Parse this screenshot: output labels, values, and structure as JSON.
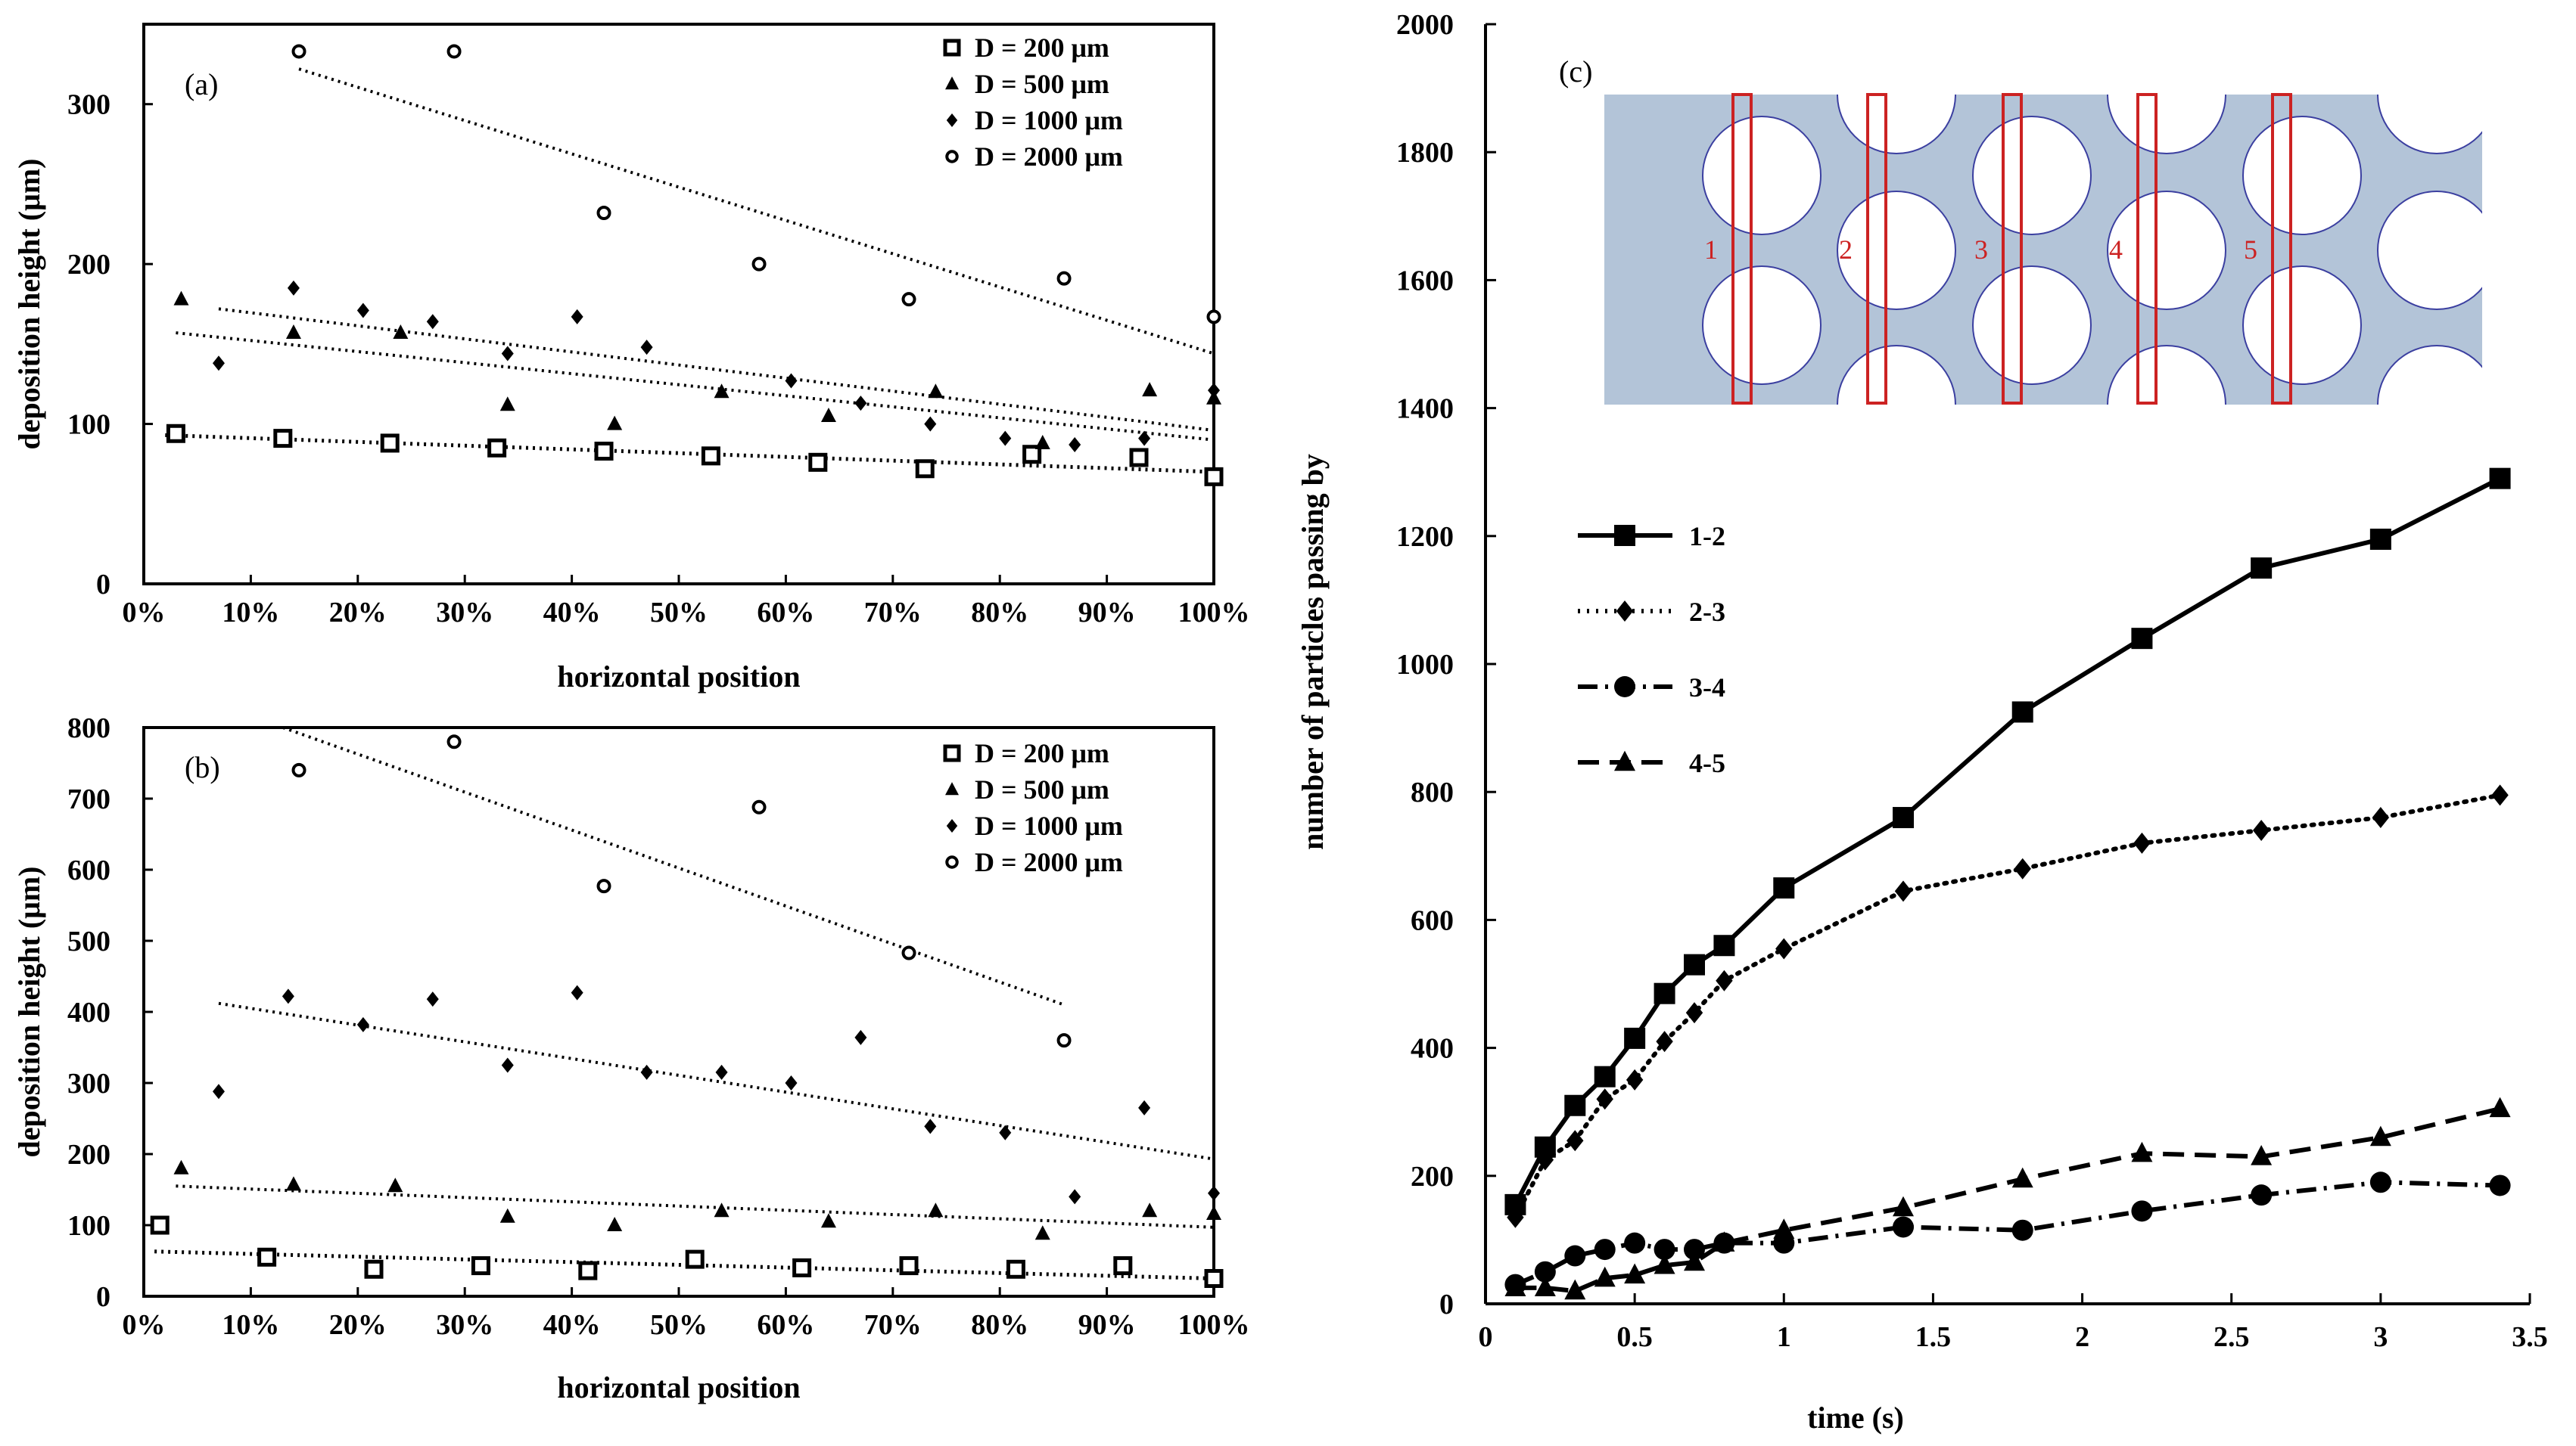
{
  "colors": {
    "axis": "#000000",
    "fluid": "#b3c4d8",
    "region_box": "#cc2222"
  },
  "chart_data": [
    {
      "id": "a",
      "type": "scatter",
      "panel_label": "(a)",
      "xlabel": "horizontal position",
      "ylabel": "deposition height (μm)",
      "xlim": [
        0,
        100
      ],
      "ylim": [
        0,
        350
      ],
      "xticks": [
        0,
        10,
        20,
        30,
        40,
        50,
        60,
        70,
        80,
        90,
        100
      ],
      "xtick_labels": [
        "0%",
        "10%",
        "20%",
        "30%",
        "40%",
        "50%",
        "60%",
        "70%",
        "80%",
        "90%",
        "100%"
      ],
      "yticks": [
        0,
        100,
        200,
        300
      ],
      "ytick_labels": [
        "0",
        "100",
        "200",
        "300"
      ],
      "legend_position": "top-right",
      "series": [
        {
          "name": "D = 200 μm",
          "marker": "square-open",
          "x": [
            3,
            13,
            23,
            33,
            43,
            53,
            63,
            73,
            83,
            93,
            100
          ],
          "y": [
            94,
            91,
            88,
            85,
            83,
            80,
            76,
            72,
            81,
            79,
            67
          ],
          "trend": [
            [
              2,
              93
            ],
            [
              100,
              70
            ]
          ]
        },
        {
          "name": "D = 500 μm",
          "marker": "triangle",
          "x": [
            3.5,
            14,
            24,
            34,
            44,
            54,
            64,
            74,
            84,
            94,
            100
          ],
          "y": [
            178,
            157,
            157,
            112,
            100,
            120,
            105,
            120,
            88,
            121,
            116
          ],
          "trend": [
            [
              3,
              157
            ],
            [
              100,
              90
            ]
          ]
        },
        {
          "name": "D = 1000 μm",
          "marker": "diamond",
          "x": [
            7,
            14,
            20.5,
            27,
            34,
            40.5,
            47,
            60.5,
            67,
            73.5,
            80.5,
            87,
            93.5,
            100
          ],
          "y": [
            138,
            185,
            171,
            164,
            144,
            167,
            148,
            127,
            113,
            100,
            91,
            87,
            91,
            121
          ],
          "trend": [
            [
              7,
              172
            ],
            [
              100,
              96
            ]
          ]
        },
        {
          "name": "D = 2000 μm",
          "marker": "circle-open",
          "x": [
            14.5,
            29,
            43,
            57.5,
            71.5,
            86,
            100
          ],
          "y": [
            333,
            333,
            232,
            200,
            178,
            191,
            167
          ],
          "trend": [
            [
              14.5,
              322
            ],
            [
              100,
              144
            ]
          ]
        }
      ]
    },
    {
      "id": "b",
      "type": "scatter",
      "panel_label": "(b)",
      "xlabel": "horizontal position",
      "ylabel": "deposition height (μm)",
      "xlim": [
        0,
        100
      ],
      "ylim": [
        0,
        800
      ],
      "xticks": [
        0,
        10,
        20,
        30,
        40,
        50,
        60,
        70,
        80,
        90,
        100
      ],
      "xtick_labels": [
        "0%",
        "10%",
        "20%",
        "30%",
        "40%",
        "50%",
        "60%",
        "70%",
        "80%",
        "90%",
        "100%"
      ],
      "yticks": [
        0,
        100,
        200,
        300,
        400,
        500,
        600,
        700,
        800
      ],
      "ytick_labels": [
        "0",
        "100",
        "200",
        "300",
        "400",
        "500",
        "600",
        "700",
        "800"
      ],
      "legend_position": "top-right",
      "series": [
        {
          "name": "D = 200 μm",
          "marker": "square-open",
          "x": [
            1.5,
            11.5,
            21.5,
            31.5,
            41.5,
            51.5,
            61.5,
            71.5,
            81.5,
            91.5,
            100
          ],
          "y": [
            100,
            55,
            38,
            43,
            36,
            52,
            40,
            43,
            38,
            43,
            25
          ],
          "trend": [
            [
              1,
              63
            ],
            [
              100,
              25
            ]
          ]
        },
        {
          "name": "D = 500 μm",
          "marker": "triangle",
          "x": [
            3.5,
            14,
            23.5,
            34,
            44,
            54,
            64,
            74,
            84,
            94,
            100
          ],
          "y": [
            180,
            157,
            155,
            112,
            100,
            120,
            105,
            120,
            88,
            120,
            116
          ],
          "trend": [
            [
              3,
              155
            ],
            [
              100,
              97
            ]
          ]
        },
        {
          "name": "D = 1000 μm",
          "marker": "diamond",
          "x": [
            7,
            13.5,
            20.5,
            27,
            34,
            40.5,
            47,
            54,
            60.5,
            67,
            73.5,
            80.5,
            87,
            93.5,
            100
          ],
          "y": [
            288,
            422,
            382,
            418,
            325,
            427,
            315,
            315,
            300,
            364,
            239,
            230,
            140,
            265,
            145
          ],
          "trend": [
            [
              7,
              412
            ],
            [
              100,
              193
            ]
          ]
        },
        {
          "name": "D = 2000 μm",
          "marker": "circle-open",
          "x": [
            14.5,
            29,
            43,
            57.5,
            71.5,
            86
          ],
          "y": [
            740,
            780,
            577,
            688,
            483,
            360
          ],
          "trend": [
            [
              13,
              800
            ],
            [
              86,
              410
            ]
          ]
        }
      ]
    },
    {
      "id": "c",
      "type": "line",
      "panel_label": "(c)",
      "xlabel": "time (s)",
      "ylabel": "number of particles passing by",
      "xlim": [
        0,
        3.5
      ],
      "ylim": [
        0,
        2000
      ],
      "xticks": [
        0,
        0.5,
        1,
        1.5,
        2,
        2.5,
        3,
        3.5
      ],
      "xtick_labels": [
        "0",
        "0.5",
        "1",
        "1.5",
        "2",
        "2.5",
        "3",
        "3.5"
      ],
      "yticks": [
        0,
        200,
        400,
        600,
        800,
        1000,
        1200,
        1400,
        1600,
        1800,
        2000
      ],
      "ytick_labels": [
        "0",
        "200",
        "400",
        "600",
        "800",
        "1000",
        "1200",
        "1400",
        "1600",
        "1800",
        "2000"
      ],
      "legend_position": "left-middle",
      "inset_region_labels": [
        "1",
        "2",
        "3",
        "4",
        "5"
      ],
      "series": [
        {
          "name": "1-2",
          "marker": "square",
          "line_style": "solid",
          "x": [
            0.1,
            0.2,
            0.3,
            0.4,
            0.5,
            0.6,
            0.7,
            0.8,
            1.0,
            1.4,
            1.8,
            2.2,
            2.6,
            3.0,
            3.4
          ],
          "y": [
            155,
            245,
            310,
            355,
            415,
            485,
            530,
            560,
            650,
            760,
            925,
            1040,
            1150,
            1195,
            1290
          ]
        },
        {
          "name": "2-3",
          "marker": "diamond",
          "line_style": "dotted",
          "x": [
            0.1,
            0.2,
            0.3,
            0.4,
            0.5,
            0.6,
            0.7,
            0.8,
            1.0,
            1.4,
            1.8,
            2.2,
            2.6,
            3.0,
            3.4
          ],
          "y": [
            135,
            225,
            255,
            320,
            350,
            410,
            455,
            505,
            555,
            645,
            680,
            720,
            740,
            760,
            795
          ]
        },
        {
          "name": "3-4",
          "marker": "circle",
          "line_style": "dash-dot",
          "x": [
            0.1,
            0.2,
            0.3,
            0.4,
            0.5,
            0.6,
            0.7,
            0.8,
            1.0,
            1.4,
            1.8,
            2.2,
            2.6,
            3.0,
            3.4
          ],
          "y": [
            30,
            50,
            75,
            85,
            95,
            85,
            85,
            95,
            95,
            120,
            115,
            145,
            170,
            190,
            185
          ]
        },
        {
          "name": "4-5",
          "marker": "triangle",
          "line_style": "dashed",
          "x": [
            0.1,
            0.2,
            0.3,
            0.4,
            0.5,
            0.6,
            0.7,
            0.8,
            1.0,
            1.4,
            1.8,
            2.2,
            2.6,
            3.0,
            3.4
          ],
          "y": [
            25,
            25,
            20,
            40,
            45,
            60,
            65,
            95,
            115,
            150,
            195,
            235,
            230,
            260,
            305
          ]
        }
      ]
    }
  ]
}
